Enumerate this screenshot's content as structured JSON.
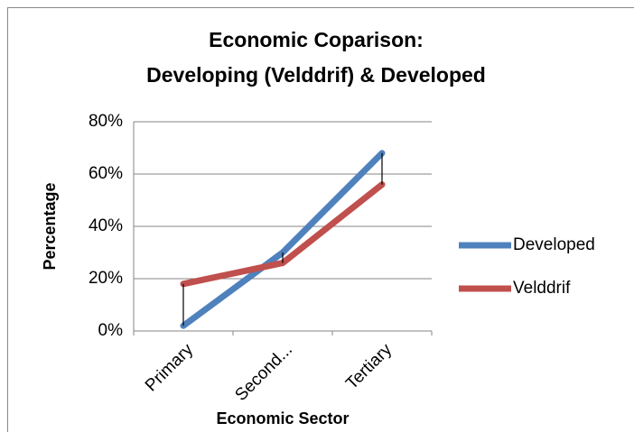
{
  "chart_data": {
    "type": "line",
    "title": [
      "Economic Coparison:",
      "Developing (Velddrif) & Developed"
    ],
    "x_label": "Economic Sector",
    "y_label": "Percentage",
    "categories": [
      "Primary",
      "Second...",
      "Tertiary"
    ],
    "series": [
      {
        "name": "Developed",
        "color": "#4f81bd",
        "values": [
          2,
          30,
          68
        ]
      },
      {
        "name": "Velddrif",
        "color": "#c0504d",
        "values": [
          18,
          26,
          56
        ]
      }
    ],
    "ylim": [
      0,
      80
    ],
    "yticks": [
      {
        "value": 0,
        "label": "0%"
      },
      {
        "value": 20,
        "label": "20%"
      },
      {
        "value": 40,
        "label": "40%"
      },
      {
        "value": 60,
        "label": "60%"
      },
      {
        "value": 80,
        "label": "80%"
      }
    ],
    "grid": true,
    "legend": "right",
    "high_low_lines": true
  }
}
